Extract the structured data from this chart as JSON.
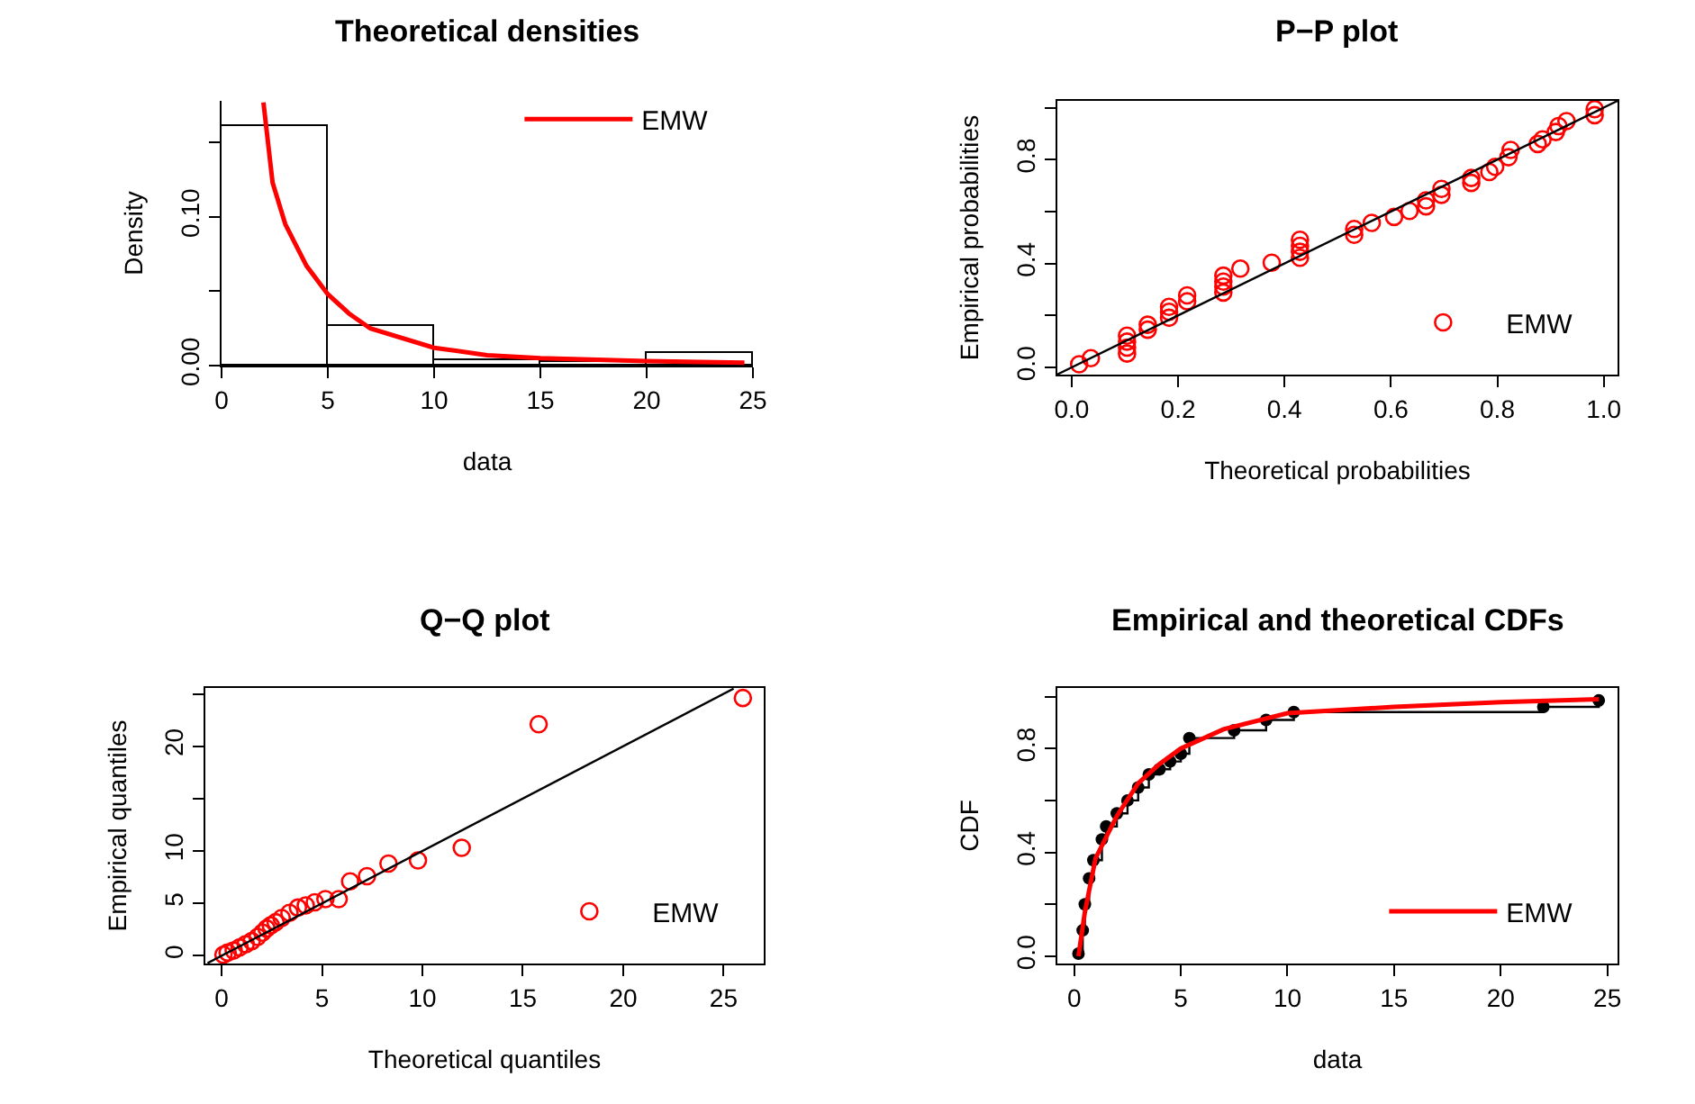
{
  "chart_data": [
    {
      "type": "histogram",
      "title": "Theoretical densities",
      "xlabel": "data",
      "ylabel": "Density",
      "xlim": [
        0,
        25
      ],
      "ylim": [
        0,
        0.178
      ],
      "xticks": [
        0,
        5,
        10,
        15,
        20,
        25
      ],
      "yticks": [
        {
          "value": 0,
          "label": "0.00"
        },
        {
          "value": 0.05,
          "label": null
        },
        {
          "value": 0.1,
          "label": "0.10"
        },
        {
          "value": 0.15,
          "label": null
        }
      ],
      "grid": false,
      "legend": "top right",
      "series": [
        {
          "type": "histogram",
          "color": "#ffffff",
          "bins": [
            0,
            5,
            10,
            15,
            20,
            25
          ],
          "values": [
            0.161,
            0.027,
            0.004,
            0.002,
            0.008
          ]
        },
        {
          "type": "line",
          "name": "EMW",
          "color": "#ff0000",
          "x": [
            1.97,
            2.4,
            3,
            4,
            5,
            6,
            7,
            10,
            12.5,
            15,
            20,
            24.6
          ],
          "values": [
            0.177,
            0.123,
            0.095,
            0.067,
            0.048,
            0.035,
            0.025,
            0.012,
            0.007,
            0.005,
            0.003,
            0.002
          ]
        }
      ]
    },
    {
      "type": "scatter",
      "title": "P−P plot",
      "xlabel": "Theoretical probabilities",
      "ylabel": "Empirical probabilities",
      "xlim": [
        -0.027,
        1.026
      ],
      "ylim": [
        -0.028,
        1.026
      ],
      "xticks": [
        {
          "value": 0,
          "label": "0.0"
        },
        0.2,
        0.4,
        0.6,
        0.8,
        {
          "value": 1,
          "label": "1.0"
        }
      ],
      "yticks": [
        {
          "value": 0,
          "label": "0.0"
        },
        {
          "value": 0.2,
          "label": null
        },
        0.4,
        {
          "value": 0.6,
          "label": null
        },
        0.8,
        {
          "value": 1,
          "label": null
        }
      ],
      "grid": false,
      "legend": "bottom right",
      "series": [
        {
          "type": "scatter",
          "name": "EMW",
          "color": "#ff0000",
          "marker": "circle",
          "x": [
            0.014,
            0.036,
            0.104,
            0.104,
            0.104,
            0.104,
            0.143,
            0.143,
            0.183,
            0.183,
            0.183,
            0.217,
            0.217,
            0.285,
            0.285,
            0.285,
            0.285,
            0.317,
            0.376,
            0.429,
            0.429,
            0.429,
            0.429,
            0.531,
            0.531,
            0.564,
            0.606,
            0.635,
            0.666,
            0.666,
            0.695,
            0.695,
            0.751,
            0.751,
            0.785,
            0.796,
            0.821,
            0.825,
            0.876,
            0.885,
            0.91,
            0.915,
            0.93,
            0.983,
            0.983
          ],
          "values": [
            0.012,
            0.035,
            0.053,
            0.076,
            0.099,
            0.122,
            0.145,
            0.164,
            0.191,
            0.214,
            0.233,
            0.254,
            0.277,
            0.288,
            0.311,
            0.33,
            0.353,
            0.38,
            0.403,
            0.422,
            0.445,
            0.468,
            0.491,
            0.51,
            0.533,
            0.556,
            0.579,
            0.602,
            0.62,
            0.643,
            0.664,
            0.687,
            0.71,
            0.729,
            0.752,
            0.772,
            0.809,
            0.837,
            0.86,
            0.878,
            0.906,
            0.929,
            0.948,
            0.971,
            0.994
          ]
        },
        {
          "type": "line",
          "color": "#000000",
          "x": [
            -0.027,
            1.026
          ],
          "values": [
            -0.027,
            1.026
          ]
        }
      ]
    },
    {
      "type": "scatter",
      "title": "Q−Q plot",
      "xlabel": "Theoretical quantiles",
      "ylabel": "Empirical quantiles",
      "xlim": [
        -0.81,
        27.0
      ],
      "ylim": [
        -0.74,
        25.56
      ],
      "xticks": [
        0,
        5,
        10,
        15,
        20,
        25
      ],
      "yticks": [
        0,
        5,
        10,
        {
          "value": 15,
          "label": null
        },
        20,
        {
          "value": 25,
          "label": null
        }
      ],
      "grid": false,
      "legend": "bottom right",
      "series": [
        {
          "type": "scatter",
          "name": "EMW",
          "color": "#ff0000",
          "marker": "circle",
          "x": [
            0.09,
            0.3,
            0.6,
            0.9,
            1.2,
            1.5,
            1.79,
            2.03,
            2.24,
            2.45,
            2.69,
            2.99,
            3.38,
            3.8,
            4.19,
            4.64,
            5.17,
            5.83,
            6.4,
            7.24,
            8.31,
            9.78,
            11.96,
            15.79,
            25.96
          ],
          "values": [
            0.1,
            0.3,
            0.5,
            0.8,
            1.1,
            1.4,
            1.8,
            2.2,
            2.6,
            2.9,
            3.2,
            3.6,
            4.1,
            4.6,
            4.8,
            5.1,
            5.4,
            5.4,
            7.1,
            7.6,
            8.8,
            9.1,
            10.3,
            22.1,
            24.6
          ]
        },
        {
          "type": "line",
          "color": "#000000",
          "x": [
            -0.7,
            25.5
          ],
          "values": [
            -0.7,
            25.5
          ]
        }
      ]
    },
    {
      "type": "step",
      "title": "Empirical and theoretical CDFs",
      "xlabel": "data",
      "ylabel": "CDF",
      "xlim": [
        -0.79,
        25.48
      ],
      "ylim": [
        -0.028,
        1.033
      ],
      "xticks": [
        0,
        5,
        10,
        15,
        20,
        25
      ],
      "yticks": [
        {
          "value": 0,
          "label": "0.0"
        },
        {
          "value": 0.2,
          "label": null
        },
        0.4,
        {
          "value": 0.6,
          "label": null
        },
        0.8,
        {
          "value": 1,
          "label": null
        }
      ],
      "grid": false,
      "legend": "bottom right",
      "series": [
        {
          "type": "step",
          "color": "#000000",
          "marker": "circle",
          "x": [
            0.2,
            0.4,
            0.5,
            0.7,
            0.9,
            1.3,
            1.5,
            2.0,
            2.5,
            3.0,
            3.5,
            4.0,
            4.5,
            5.0,
            5.4,
            7.5,
            9.0,
            10.3,
            22.0,
            24.6
          ],
          "values": [
            0.01,
            0.1,
            0.2,
            0.3,
            0.37,
            0.45,
            0.5,
            0.55,
            0.6,
            0.65,
            0.7,
            0.72,
            0.75,
            0.78,
            0.84,
            0.87,
            0.91,
            0.94,
            0.96,
            0.985
          ]
        },
        {
          "type": "line",
          "name": "EMW",
          "color": "#ff0000",
          "x": [
            0.2,
            0.5,
            1,
            2,
            3,
            4,
            5,
            7,
            10,
            15,
            20,
            24.6
          ],
          "values": [
            0.0,
            0.17,
            0.377,
            0.54,
            0.666,
            0.74,
            0.8,
            0.874,
            0.936,
            0.96,
            0.978,
            0.99
          ]
        }
      ]
    }
  ]
}
